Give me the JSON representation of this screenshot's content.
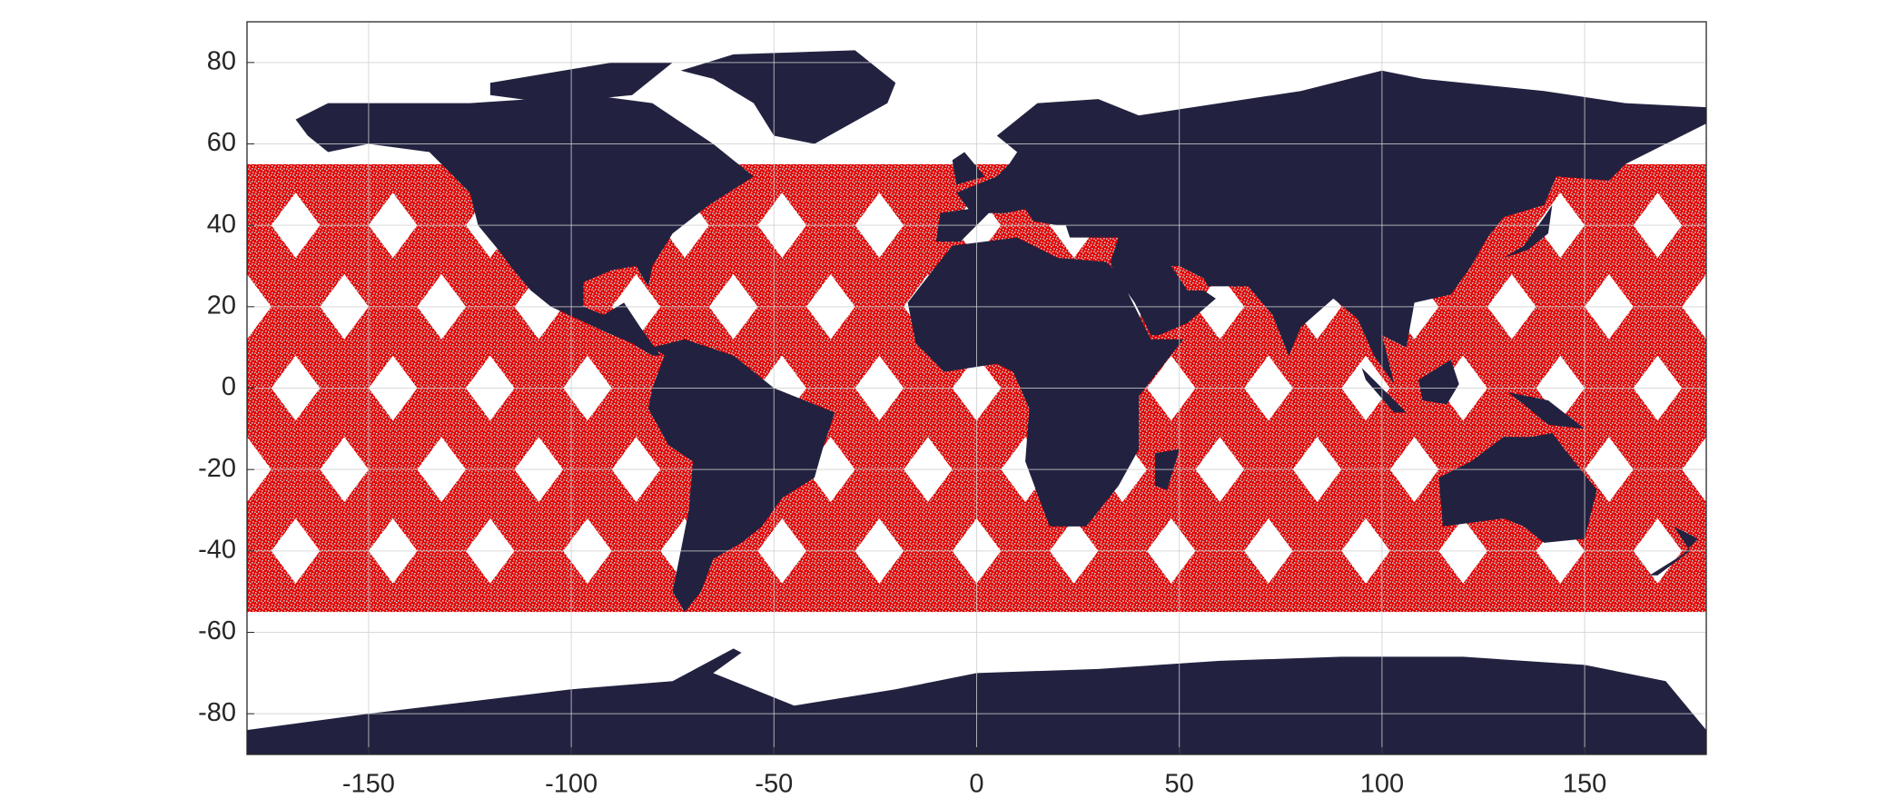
{
  "chart_data": {
    "type": "map",
    "xlim": [
      -180,
      180
    ],
    "ylim": [
      -90,
      90
    ],
    "xticks": [
      -150,
      -100,
      -50,
      0,
      50,
      100,
      150
    ],
    "yticks": [
      80,
      60,
      40,
      20,
      0,
      -20,
      -40,
      -60,
      -80
    ],
    "grid": true,
    "band_lat": [
      -55,
      55
    ],
    "band_color": "#e60000",
    "speckle_color": "#c4c4c4",
    "land_color": "#222240"
  }
}
